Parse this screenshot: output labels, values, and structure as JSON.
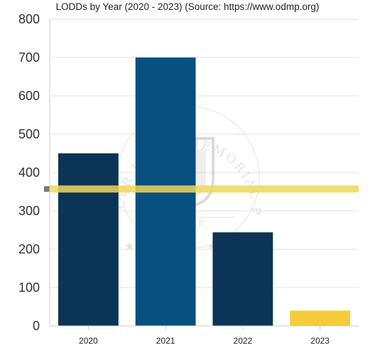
{
  "chart_data": {
    "type": "bar",
    "title": "LODDs by Year (2020 - 2023)  (Source: https://www.odmp.org)",
    "categories": [
      "2020",
      "2021",
      "2022",
      "2023"
    ],
    "values": [
      450,
      700,
      244,
      40
    ],
    "bar_colors": [
      "#0b3557",
      "#07507f",
      "#0b3557",
      "#f5cc37"
    ],
    "ylim": [
      0,
      800
    ],
    "yticks": [
      0,
      100,
      200,
      300,
      400,
      500,
      600,
      700,
      800
    ],
    "ytick_labels": [
      "0",
      "100",
      "200",
      "300",
      "400",
      "500",
      "600",
      "700",
      "800"
    ],
    "reference_line": {
      "value": 357,
      "color": "#f0d65a"
    },
    "grid": true,
    "xlabel": "",
    "ylabel": "",
    "watermark": {
      "arc_text": "OFFICER DOWN MEMORIAL PAGE",
      "center_text": "ODMP"
    }
  }
}
